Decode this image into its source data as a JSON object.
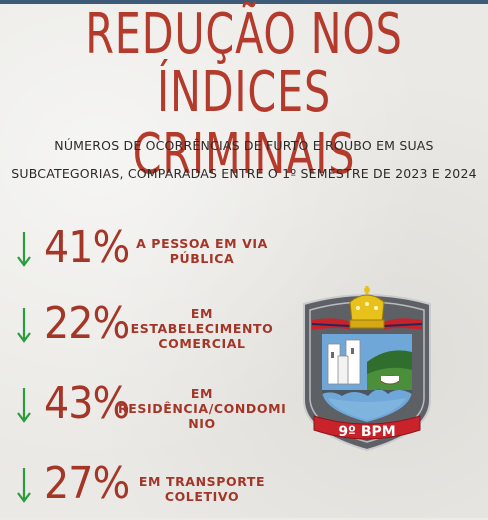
{
  "title_line1": "REDUÇÃO NOS",
  "title_line2": "ÍNDICES CRIMINAIS",
  "subtitle_line1": "NÚMEROS DE OCORRÊNCIAS DE FURTO E ROUBO EM SUAS",
  "subtitle_line2": "SUBCATEGORIAS, COMPARADAS ENTRE O 1º SEMESTRE DE 2023 E 2024",
  "stats": [
    {
      "value": "41%",
      "label_line1": "A PESSOA EM VIA",
      "label_line2": "PÚBLICA",
      "label_line3": ""
    },
    {
      "value": "22%",
      "label_line1": "EM",
      "label_line2": "ESTABELECIMENTO",
      "label_line3": "COMERCIAL"
    },
    {
      "value": "43%",
      "label_line1": "EM",
      "label_line2": "RESIDÊNCIA/CONDOMI",
      "label_line3": "NIO"
    },
    {
      "value": "27%",
      "label_line1": "EM TRANSPORTE",
      "label_line2": "COLETIVO",
      "label_line3": ""
    }
  ],
  "badge": {
    "text": "9º BPM"
  },
  "colors": {
    "title": "#b43a2c",
    "arrow": "#2c9b3c",
    "badge_red": "#c8232b",
    "badge_gray": "#5d6166"
  }
}
